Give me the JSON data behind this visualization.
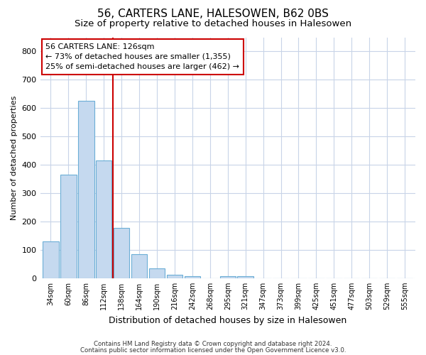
{
  "title": "56, CARTERS LANE, HALESOWEN, B62 0BS",
  "subtitle": "Size of property relative to detached houses in Halesowen",
  "xlabel": "Distribution of detached houses by size in Halesowen",
  "ylabel": "Number of detached properties",
  "categories": [
    "34sqm",
    "60sqm",
    "86sqm",
    "112sqm",
    "138sqm",
    "164sqm",
    "190sqm",
    "216sqm",
    "242sqm",
    "268sqm",
    "295sqm",
    "321sqm",
    "347sqm",
    "373sqm",
    "399sqm",
    "425sqm",
    "451sqm",
    "477sqm",
    "503sqm",
    "529sqm",
    "555sqm"
  ],
  "values": [
    130,
    365,
    625,
    415,
    178,
    85,
    35,
    13,
    7,
    0,
    8,
    8,
    0,
    0,
    0,
    0,
    0,
    0,
    0,
    0,
    0
  ],
  "bar_color": "#c5d9ef",
  "bar_edge_color": "#6baed6",
  "vline_x": 3.5,
  "vline_color": "#cc0000",
  "annotation_text": "56 CARTERS LANE: 126sqm\n← 73% of detached houses are smaller (1,355)\n25% of semi-detached houses are larger (462) →",
  "annotation_box_color": "#cc0000",
  "ylim": [
    0,
    850
  ],
  "yticks": [
    0,
    100,
    200,
    300,
    400,
    500,
    600,
    700,
    800
  ],
  "footer1": "Contains HM Land Registry data © Crown copyright and database right 2024.",
  "footer2": "Contains public sector information licensed under the Open Government Licence v3.0.",
  "bg_color": "#ffffff",
  "plot_bg_color": "#ffffff",
  "grid_color": "#c8d4e8",
  "title_fontsize": 11,
  "subtitle_fontsize": 9.5,
  "bar_width": 0.9
}
